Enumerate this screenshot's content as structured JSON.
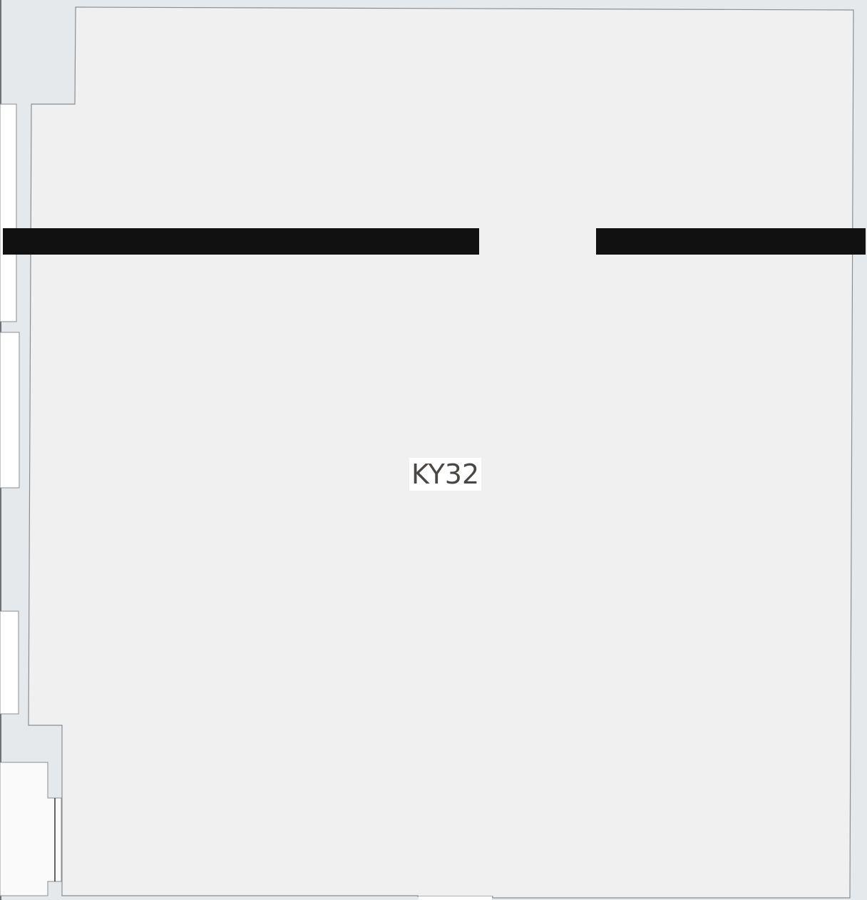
{
  "map": {
    "room_label": "KY32"
  },
  "colors": {
    "corridor": "#e6e9ec",
    "room_fill": "#f0f0f0",
    "adjacent_room_fill": "#ffffff",
    "stair_fill": "#fafafa",
    "outline": "#8a8e92",
    "redaction_bar": "#111111",
    "label_text": "#4a4744"
  }
}
